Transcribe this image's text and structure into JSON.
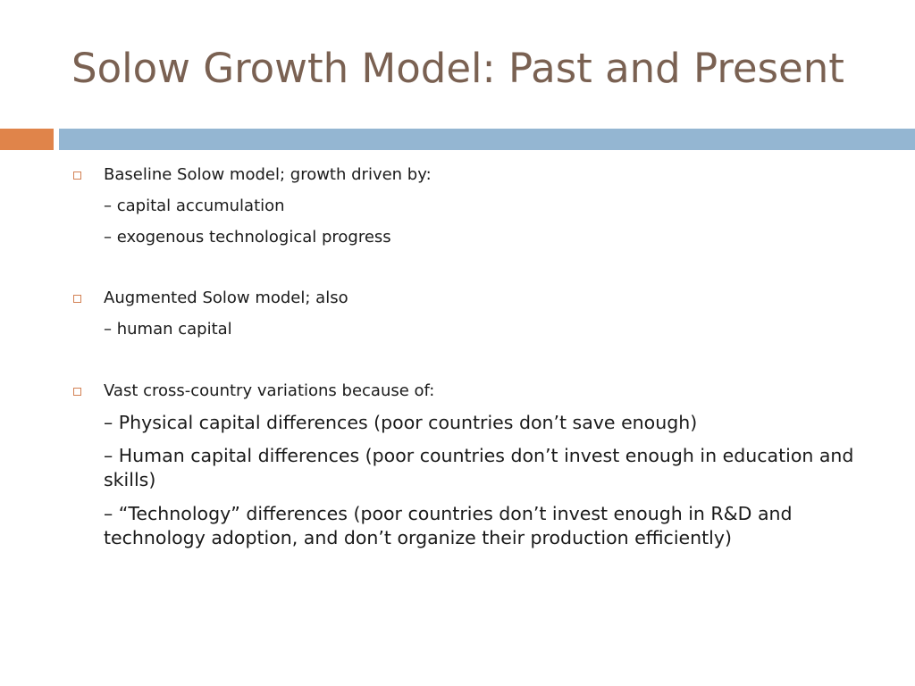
{
  "slide": {
    "title": "Solow Growth Model: Past and Present"
  },
  "sections": [
    {
      "heading": "Baseline Solow model; growth driven by:",
      "items": [
        "– capital accumulation",
        "– exogenous technological progress"
      ]
    },
    {
      "heading": "Augmented Solow model; also",
      "items": [
        "– human capital"
      ]
    },
    {
      "heading": "Vast cross-country variations because of:",
      "items": [
        "– Physical capital differences (poor countries don’t save enough)",
        "– Human capital differences (poor countries don’t invest enough in education and skills)",
        "– “Technology” differences (poor countries don’t invest enough in R&D and technology adoption, and don’t organize their production efficiently)"
      ]
    }
  ],
  "colors": {
    "title": "#7a6152",
    "accent_orange": "#e0844a",
    "accent_blue": "#94b6d2",
    "bullet": "#d38154"
  }
}
